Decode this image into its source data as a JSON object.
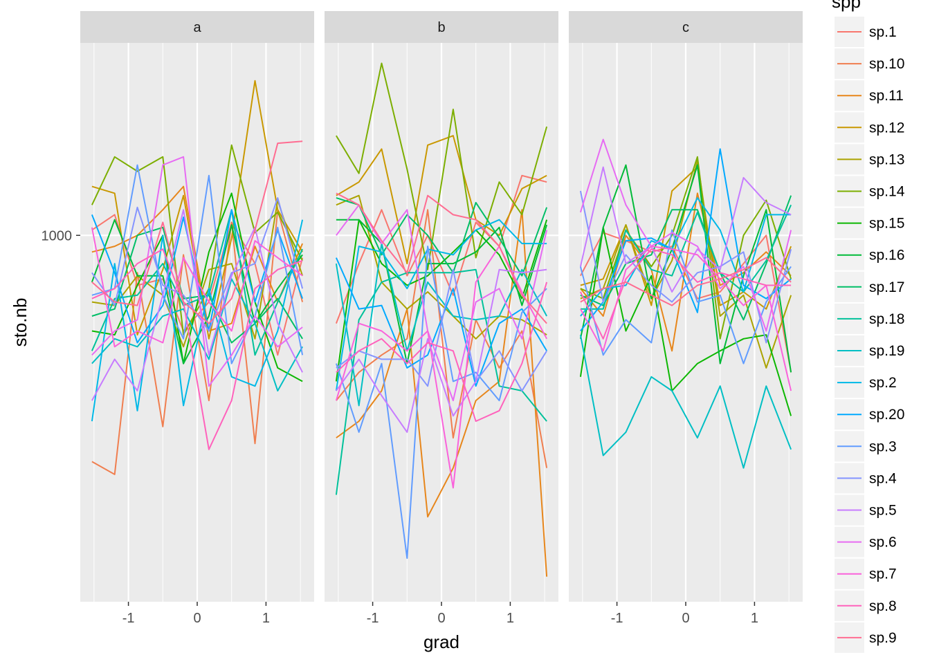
{
  "chart_data": {
    "type": "line",
    "facet_by": "grad-panel",
    "panels": [
      "a",
      "b",
      "c"
    ],
    "xlabel": "grad",
    "ylabel": "sto.nb",
    "x_ticks": [
      -1,
      0,
      1
    ],
    "x_tick_labels": [
      "-1",
      "0",
      "1"
    ],
    "y_ticks": [
      1000
    ],
    "y_tick_labels": [
      "1000"
    ],
    "xlim": [
      -1.7,
      1.7
    ],
    "ylim": [
      255,
      2050
    ],
    "y_scale": "log",
    "legend_title": "spp",
    "legend_position": "right",
    "x": [
      -1.53,
      -1.2,
      -0.87,
      -0.5,
      -0.2,
      0.17,
      0.5,
      0.84,
      1.17,
      1.53
    ],
    "series": [
      {
        "name": "sp.1",
        "color": "#F8766D",
        "values": {
          "a": [
            1020,
            1080,
            830,
            850,
            700,
            780,
            1050,
            900,
            640,
            920
          ],
          "b": [
            720,
            900,
            1100,
            860,
            1000,
            800,
            1050,
            960,
            1250,
            1220
          ],
          "c": [
            860,
            1010,
            980,
            940,
            960,
            790,
            810,
            900,
            1000,
            600
          ]
        }
      },
      {
        "name": "sp.10",
        "color": "#F07E4F",
        "values": {
          "a": [
            430,
            410,
            870,
            490,
            930,
            540,
            1050,
            460,
            1100,
            780
          ],
          "b": [
            540,
            600,
            640,
            680,
            1100,
            470,
            730,
            610,
            700,
            420
          ]
        }
      },
      {
        "name": "sp.11",
        "color": "#E7861B",
        "values": {
          "a": [
            940,
            960,
            1000,
            1100,
            1200,
            700,
            720,
            960,
            780,
            970
          ],
          "b": [
            470,
            500,
            560,
            760,
            350,
            420,
            540,
            580,
            1100,
            280
          ],
          "c": [
            820,
            740,
            1000,
            880,
            650,
            1170,
            830,
            870,
            940,
            860
          ]
        }
      },
      {
        "name": "sp.12",
        "color": "#C99800",
        "values": {
          "a": [
            1200,
            1170,
            690,
            880,
            1160,
            680,
            990,
            1780,
            1100,
            940
          ],
          "b": [
            1160,
            1220,
            1380,
            900,
            1400,
            1450,
            1060,
            1000,
            1190,
            1250
          ],
          "c": [
            830,
            850,
            1040,
            770,
            1180,
            1290,
            770,
            810,
            760,
            960
          ]
        }
      },
      {
        "name": "sp.13",
        "color": "#ABA300",
        "values": {
          "a": [
            780,
            770,
            860,
            800,
            660,
            880,
            900,
            680,
            1140,
            860
          ],
          "b": [
            1120,
            1160,
            840,
            760,
            810,
            740,
            680,
            740,
            730,
            690
          ],
          "c": [
            790,
            820,
            1040,
            790,
            910,
            1320,
            740,
            800,
            610,
            800
          ]
        }
      },
      {
        "name": "sp.14",
        "color": "#7CAE00",
        "values": {
          "a": [
            1120,
            1340,
            1270,
            1340,
            690,
            820,
            1400,
            1010,
            1090,
            910
          ],
          "b": [
            1450,
            1260,
            1900,
            1280,
            880,
            1600,
            920,
            1220,
            1080,
            1500
          ],
          "c": [
            820,
            790,
            1020,
            890,
            1000,
            1340,
            680,
            1000,
            1140,
            850
          ]
        }
      },
      {
        "name": "sp.15",
        "color": "#0CB702",
        "values": {
          "a": [
            700,
            690,
            830,
            1000,
            620,
            940,
            1170,
            780,
            610,
            580
          ],
          "b": [
            580,
            1060,
            900,
            830,
            860,
            940,
            1020,
            930,
            790,
            1060
          ],
          "c": [
            590,
            1030,
            700,
            860,
            560,
            620,
            650,
            680,
            690,
            510
          ]
        }
      },
      {
        "name": "sp.16",
        "color": "#00BA38",
        "values": {
          "a": [
            840,
            1060,
            860,
            860,
            620,
            740,
            1040,
            720,
            820,
            930
          ],
          "b": [
            1060,
            1060,
            970,
            620,
            900,
            900,
            940,
            1030,
            770,
            1040
          ],
          "c": [
            680,
            1030,
            1300,
            790,
            950,
            1300,
            620,
            860,
            1100,
            600
          ]
        }
      },
      {
        "name": "sp.17",
        "color": "#00BE67",
        "values": {
          "a": [
            740,
            760,
            1000,
            1030,
            790,
            800,
            670,
            720,
            790,
            680
          ],
          "b": [
            1150,
            1120,
            930,
            1080,
            1000,
            870,
            1130,
            990,
            860,
            1110
          ],
          "c": [
            800,
            770,
            900,
            930,
            1100,
            1100,
            870,
            730,
            900,
            1160
          ]
        }
      },
      {
        "name": "sp.18",
        "color": "#00C19A",
        "values": {
          "a": [
            650,
            790,
            800,
            900,
            770,
            800,
            1100,
            640,
            780,
            950
          ],
          "b": [
            380,
            730,
            840,
            870,
            870,
            870,
            880,
            570,
            560,
            500
          ],
          "c": [
            760,
            760,
            1020,
            880,
            860,
            1090,
            870,
            810,
            910,
            1120
          ]
        }
      },
      {
        "name": "sp.19",
        "color": "#00BFC4",
        "values": {
          "a": [
            620,
            680,
            660,
            740,
            760,
            630,
            850,
            720,
            560,
            660
          ],
          "b": [
            900,
            530,
            970,
            650,
            840,
            740,
            730,
            740,
            880,
            740
          ],
          "c": [
            690,
            440,
            480,
            590,
            560,
            470,
            570,
            420,
            570,
            450
          ]
        }
      },
      {
        "name": "sp.2",
        "color": "#00B8E7",
        "values": {
          "a": [
            500,
            900,
            520,
            1000,
            530,
            820,
            590,
            570,
            700,
            1060
          ],
          "b": [
            560,
            960,
            940,
            820,
            950,
            930,
            1020,
            1060,
            970,
            970
          ],
          "c": [
            740,
            820,
            830,
            980,
            950,
            1150,
            1020,
            810,
            1080,
            1080
          ]
        }
      },
      {
        "name": "sp.20",
        "color": "#00A9FF",
        "values": {
          "a": [
            1080,
            870,
            670,
            770,
            1070,
            700,
            1100,
            780,
            1020,
            790
          ],
          "b": [
            920,
            760,
            770,
            610,
            640,
            820,
            570,
            720,
            760,
            650
          ],
          "c": [
            700,
            780,
            980,
            990,
            950,
            750,
            1380,
            830,
            790,
            850
          ]
        }
      },
      {
        "name": "sp.3",
        "color": "#619CFF",
        "values": {
          "a": [
            800,
            820,
            1300,
            800,
            680,
            1250,
            620,
            740,
            1030,
            640
          ],
          "b": [
            620,
            480,
            620,
            300,
            960,
            580,
            600,
            540,
            750,
            820
          ],
          "c": [
            890,
            640,
            730,
            670,
            1020,
            780,
            800,
            620,
            780,
            890
          ]
        }
      },
      {
        "name": "sp.4",
        "color": "#8494FF",
        "values": {
          "a": [
            870,
            770,
            1110,
            830,
            800,
            700,
            870,
            900,
            1150,
            820
          ],
          "b": [
            610,
            650,
            630,
            630,
            570,
            880,
            580,
            650,
            560,
            650
          ],
          "c": [
            1180,
            780,
            930,
            830,
            780,
            870,
            890,
            940,
            670,
            950
          ]
        }
      },
      {
        "name": "sp.5",
        "color": "#C77CFF",
        "values": {
          "a": [
            540,
            630,
            560,
            800,
            1100,
            640,
            860,
            1030,
            720,
            600
          ],
          "b": [
            560,
            630,
            550,
            480,
            680,
            510,
            580,
            880,
            870,
            880
          ],
          "c": [
            890,
            1290,
            900,
            960,
            810,
            950,
            880,
            1240,
            1130,
            1080
          ]
        }
      },
      {
        "name": "sp.6",
        "color": "#E76BF3",
        "values": {
          "a": [
            640,
            700,
            730,
            1300,
            1340,
            570,
            640,
            740,
            660,
            710
          ],
          "b": [
            1000,
            1120,
            970,
            1100,
            700,
            540,
            780,
            820,
            680,
            1020
          ],
          "c": [
            1090,
            1430,
            1120,
            960,
            1010,
            960,
            820,
            890,
            700,
            1020
          ]
        }
      },
      {
        "name": "sp.7",
        "color": "#FA62DB",
        "values": {
          "a": [
            1030,
            660,
            700,
            670,
            920,
            780,
            700,
            980,
            920,
            860
          ],
          "b": [
            540,
            720,
            700,
            650,
            700,
            390,
            840,
            960,
            810,
            680
          ],
          "c": [
            760,
            650,
            880,
            960,
            950,
            930,
            850,
            770,
            830,
            560
          ]
        }
      },
      {
        "name": "sp.8",
        "color": "#FF62BC",
        "values": {
          "a": [
            790,
            820,
            900,
            950,
            780,
            450,
            540,
            820,
            880,
            910
          ],
          "b": [
            600,
            650,
            680,
            620,
            670,
            650,
            500,
            520,
            620,
            840
          ],
          "c": [
            810,
            680,
            850,
            950,
            930,
            840,
            870,
            850,
            830,
            830
          ]
        }
      },
      {
        "name": "sp.9",
        "color": "#FF6C91",
        "values": {
          "a": [
            840,
            780,
            770,
            1050,
            780,
            720,
            790,
            1020,
            1410,
            1420
          ],
          "b": [
            1170,
            1120,
            980,
            870,
            1160,
            1080,
            1060,
            960,
            800,
            720
          ],
          "c": [
            780,
            820,
            840,
            800,
            770,
            830,
            850,
            880,
            920,
            840
          ]
        }
      }
    ]
  }
}
